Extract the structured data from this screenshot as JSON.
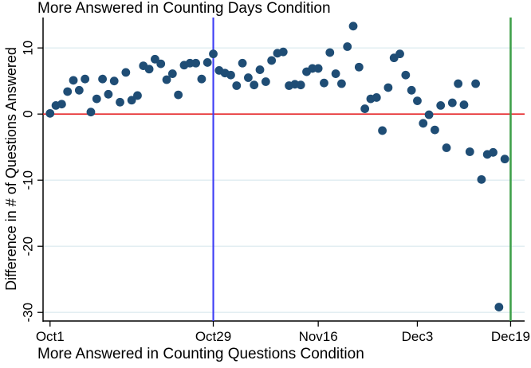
{
  "chart_data": {
    "type": "scatter",
    "title": "More Answered in Counting Days Condition",
    "x_axis_label": "More Answered in Counting Questions Condition",
    "y_axis_label": "Difference in # of Questions Answered",
    "x_unit": "days since Oct 1",
    "x_tick_days": [
      0,
      28,
      46,
      63,
      79
    ],
    "x_tick_labels": [
      "Oct1",
      "Oct29",
      "Nov16",
      "Dec3",
      "Dec19"
    ],
    "y_tick_values": [
      10,
      0,
      -10,
      -20,
      -30
    ],
    "y_tick_labels": [
      "10",
      "0",
      "-10",
      "-20",
      "-30"
    ],
    "xlim_days": [
      -1.2,
      81.4
    ],
    "ylim": [
      -31.3,
      14.6
    ],
    "grid": "horizontal-light",
    "legend": "none",
    "reference_lines": [
      {
        "id": "zero",
        "orientation": "horizontal",
        "y": 0,
        "color_key": "zero_line_red"
      },
      {
        "id": "oct29",
        "orientation": "vertical",
        "day": 28,
        "color_key": "oct29_line_blue"
      },
      {
        "id": "dec19",
        "orientation": "vertical",
        "day": 79,
        "color_key": "dec19_line_green"
      }
    ],
    "series": [
      {
        "name": "daily difference in questions answered",
        "marker_color_key": "marker",
        "points_day_value": [
          [
            0,
            0.1
          ],
          [
            1,
            1.3
          ],
          [
            2,
            1.5
          ],
          [
            3,
            3.4
          ],
          [
            4,
            5.1
          ],
          [
            5,
            3.6
          ],
          [
            6,
            5.3
          ],
          [
            7,
            0.3
          ],
          [
            8,
            2.3
          ],
          [
            9,
            5.3
          ],
          [
            10,
            3.0
          ],
          [
            11,
            5.0
          ],
          [
            12,
            1.8
          ],
          [
            13,
            6.3
          ],
          [
            14,
            2.1
          ],
          [
            15,
            2.8
          ],
          [
            16,
            7.3
          ],
          [
            17,
            6.8
          ],
          [
            18,
            8.3
          ],
          [
            19,
            7.6
          ],
          [
            20,
            5.2
          ],
          [
            21,
            6.1
          ],
          [
            22,
            2.9
          ],
          [
            23,
            7.4
          ],
          [
            24,
            7.7
          ],
          [
            25,
            7.7
          ],
          [
            26,
            5.3
          ],
          [
            27,
            7.8
          ],
          [
            28,
            9.1
          ],
          [
            29,
            6.6
          ],
          [
            30,
            6.2
          ],
          [
            31,
            5.9
          ],
          [
            32,
            4.3
          ],
          [
            33,
            7.7
          ],
          [
            34,
            5.5
          ],
          [
            35,
            4.4
          ],
          [
            36,
            6.7
          ],
          [
            37,
            4.9
          ],
          [
            38,
            8.1
          ],
          [
            39,
            9.2
          ],
          [
            40,
            9.4
          ],
          [
            41,
            4.3
          ],
          [
            42,
            4.5
          ],
          [
            43,
            4.4
          ],
          [
            44,
            6.4
          ],
          [
            45,
            6.9
          ],
          [
            46,
            6.9
          ],
          [
            47,
            4.7
          ],
          [
            48,
            9.3
          ],
          [
            49,
            6.1
          ],
          [
            50,
            4.6
          ],
          [
            51,
            10.2
          ],
          [
            52,
            13.3
          ],
          [
            53,
            7.1
          ],
          [
            54,
            0.8
          ],
          [
            55,
            2.3
          ],
          [
            56,
            2.5
          ],
          [
            57,
            -2.5
          ],
          [
            58,
            4.0
          ],
          [
            59,
            8.5
          ],
          [
            60,
            9.1
          ],
          [
            61,
            5.9
          ],
          [
            62,
            3.6
          ],
          [
            63,
            2.0
          ],
          [
            64,
            -1.4
          ],
          [
            65,
            -0.1
          ],
          [
            66,
            -2.4
          ],
          [
            67,
            1.3
          ],
          [
            68,
            -5.1
          ],
          [
            69,
            1.7
          ],
          [
            70,
            4.6
          ],
          [
            71,
            1.4
          ],
          [
            72,
            -5.7
          ],
          [
            73,
            4.6
          ],
          [
            74,
            -9.9
          ],
          [
            75,
            -6.1
          ],
          [
            76,
            -5.8
          ],
          [
            77,
            -29.2
          ],
          [
            78,
            -6.8
          ]
        ]
      }
    ]
  },
  "colors": {
    "marker": "#1f4d75",
    "zero_line_red": "#e52629",
    "oct29_line_blue": "#3d3df5",
    "dec19_line_green": "#3fa04a",
    "gridline": "#dfecf0",
    "axis": "#000000",
    "background": "#ffffff"
  }
}
